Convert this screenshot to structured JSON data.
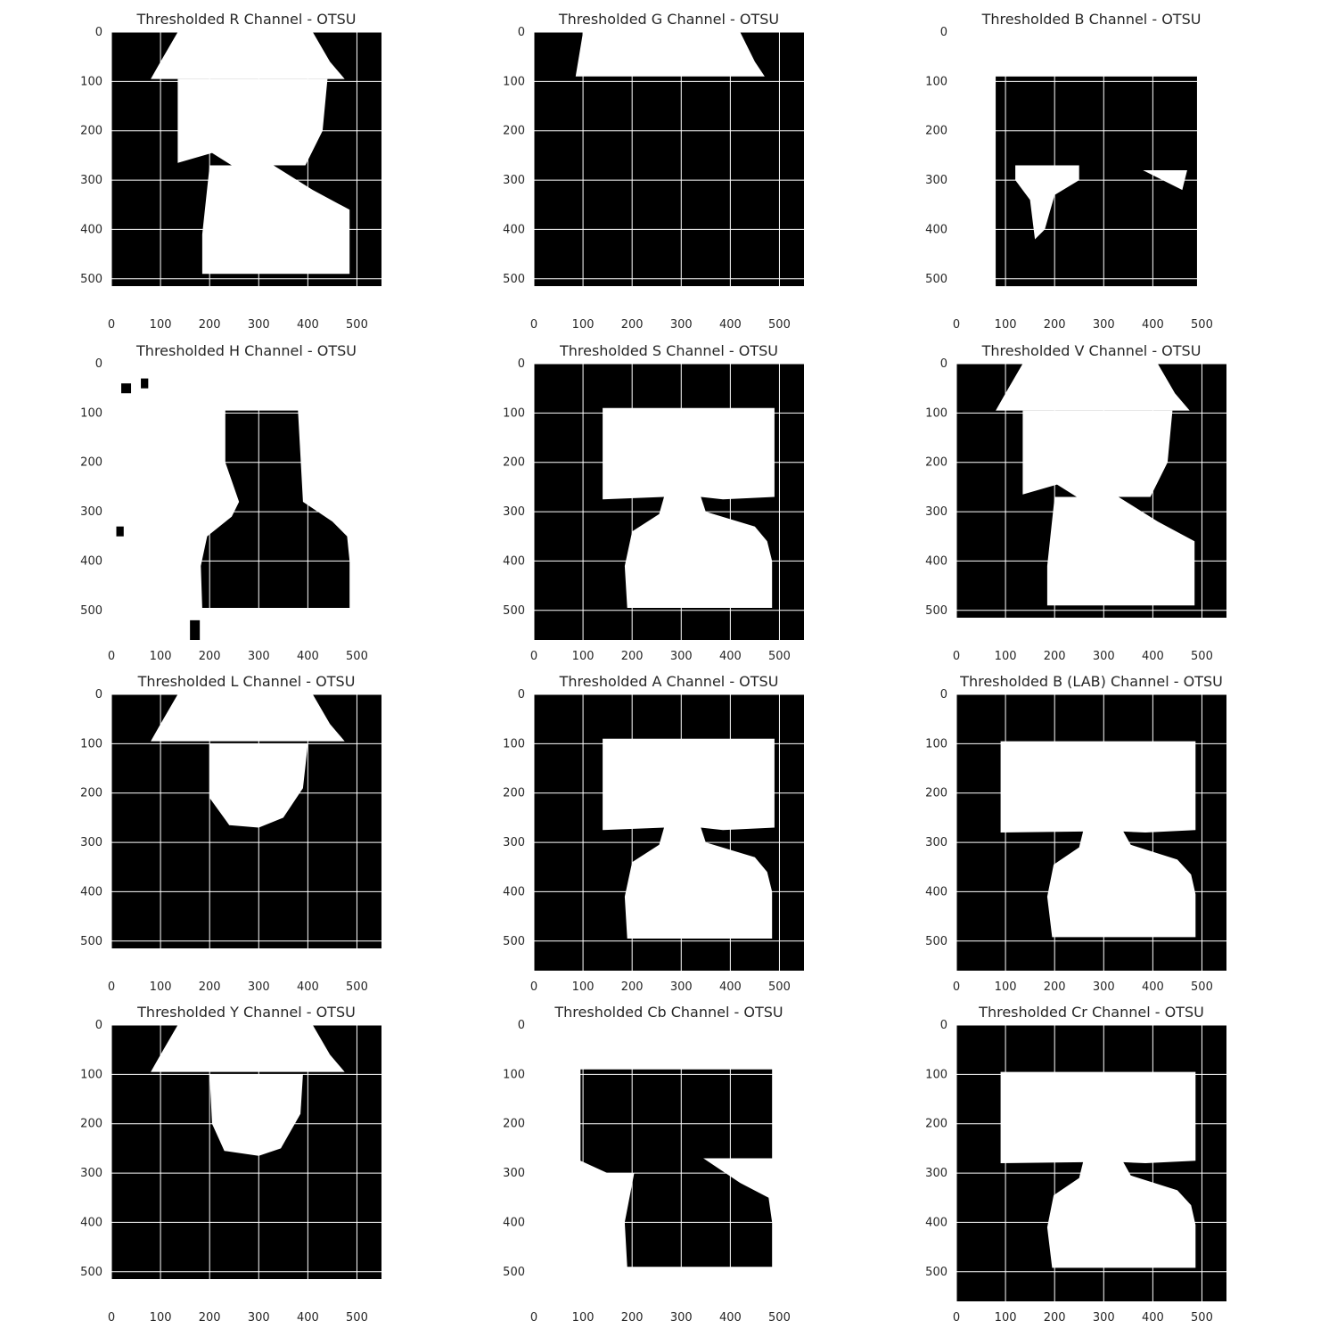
{
  "figure": {
    "background": "#ffffff",
    "image_colors": {
      "foreground": "#ffffff",
      "background": "#000000"
    },
    "grid_color": "#ffffff",
    "layout": "4x3 grid of thresholded image panels"
  },
  "chart_data": [
    {
      "type": "heatmap",
      "title": "Thresholded R Channel - OTSU",
      "mask": "r",
      "xlim": [
        0,
        550
      ],
      "ylim": [
        560,
        0
      ],
      "xticks": [
        0,
        100,
        200,
        300,
        400,
        500
      ],
      "yticks": [
        0,
        100,
        200,
        300,
        400,
        500
      ],
      "grid": true
    },
    {
      "type": "heatmap",
      "title": "Thresholded G Channel - OTSU",
      "mask": "g",
      "xlim": [
        0,
        550
      ],
      "ylim": [
        560,
        0
      ],
      "xticks": [
        0,
        100,
        200,
        300,
        400,
        500
      ],
      "yticks": [
        0,
        100,
        200,
        300,
        400,
        500
      ],
      "grid": true
    },
    {
      "type": "heatmap",
      "title": "Thresholded B Channel - OTSU",
      "mask": "b",
      "xlim": [
        0,
        550
      ],
      "ylim": [
        560,
        0
      ],
      "xticks": [
        0,
        100,
        200,
        300,
        400,
        500
      ],
      "yticks": [
        0,
        100,
        200,
        300,
        400,
        500
      ],
      "grid": true
    },
    {
      "type": "heatmap",
      "title": "Thresholded H Channel - OTSU",
      "mask": "h",
      "xlim": [
        0,
        550
      ],
      "ylim": [
        560,
        0
      ],
      "xticks": [
        0,
        100,
        200,
        300,
        400,
        500
      ],
      "yticks": [
        0,
        100,
        200,
        300,
        400,
        500
      ],
      "grid": true
    },
    {
      "type": "heatmap",
      "title": "Thresholded S Channel - OTSU",
      "mask": "s",
      "xlim": [
        0,
        550
      ],
      "ylim": [
        560,
        0
      ],
      "xticks": [
        0,
        100,
        200,
        300,
        400,
        500
      ],
      "yticks": [
        0,
        100,
        200,
        300,
        400,
        500
      ],
      "grid": true
    },
    {
      "type": "heatmap",
      "title": "Thresholded V Channel - OTSU",
      "mask": "v",
      "xlim": [
        0,
        550
      ],
      "ylim": [
        560,
        0
      ],
      "xticks": [
        0,
        100,
        200,
        300,
        400,
        500
      ],
      "yticks": [
        0,
        100,
        200,
        300,
        400,
        500
      ],
      "grid": true
    },
    {
      "type": "heatmap",
      "title": "Thresholded L Channel - OTSU",
      "mask": "l",
      "xlim": [
        0,
        550
      ],
      "ylim": [
        560,
        0
      ],
      "xticks": [
        0,
        100,
        200,
        300,
        400,
        500
      ],
      "yticks": [
        0,
        100,
        200,
        300,
        400,
        500
      ],
      "grid": true
    },
    {
      "type": "heatmap",
      "title": "Thresholded A Channel - OTSU",
      "mask": "a",
      "xlim": [
        0,
        550
      ],
      "ylim": [
        560,
        0
      ],
      "xticks": [
        0,
        100,
        200,
        300,
        400,
        500
      ],
      "yticks": [
        0,
        100,
        200,
        300,
        400,
        500
      ],
      "grid": true
    },
    {
      "type": "heatmap",
      "title": "Thresholded B (LAB) Channel - OTSU",
      "mask": "b_lab",
      "xlim": [
        0,
        550
      ],
      "ylim": [
        560,
        0
      ],
      "xticks": [
        0,
        100,
        200,
        300,
        400,
        500
      ],
      "yticks": [
        0,
        100,
        200,
        300,
        400,
        500
      ],
      "grid": true
    },
    {
      "type": "heatmap",
      "title": "Thresholded Y Channel - OTSU",
      "mask": "y",
      "xlim": [
        0,
        550
      ],
      "ylim": [
        560,
        0
      ],
      "xticks": [
        0,
        100,
        200,
        300,
        400,
        500
      ],
      "yticks": [
        0,
        100,
        200,
        300,
        400,
        500
      ],
      "grid": true
    },
    {
      "type": "heatmap",
      "title": "Thresholded Cb Channel - OTSU",
      "mask": "cb",
      "xlim": [
        0,
        550
      ],
      "ylim": [
        560,
        0
      ],
      "xticks": [
        0,
        100,
        200,
        300,
        400,
        500
      ],
      "yticks": [
        0,
        100,
        200,
        300,
        400,
        500
      ],
      "grid": true
    },
    {
      "type": "heatmap",
      "title": "Thresholded Cr Channel - OTSU",
      "mask": "cr",
      "xlim": [
        0,
        550
      ],
      "ylim": [
        560,
        0
      ],
      "xticks": [
        0,
        100,
        200,
        300,
        400,
        500
      ],
      "yticks": [
        0,
        100,
        200,
        300,
        400,
        500
      ],
      "grid": true
    }
  ]
}
